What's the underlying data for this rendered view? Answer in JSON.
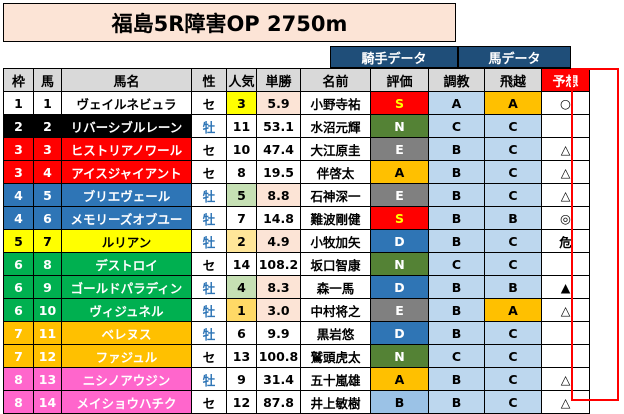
{
  "title": "福島5R障害OP 2750m",
  "groups": {
    "jockey": "騎手データ",
    "horse": "馬データ"
  },
  "headers": {
    "waku": "枠",
    "uma": "馬",
    "name": "馬名",
    "sex": "性",
    "pop": "人気",
    "odds": "単勝",
    "jockey": "名前",
    "rating": "評価",
    "chokyo": "調教",
    "hiyaku": "飛越",
    "pred": "予想"
  },
  "colors": {
    "waku1": "#ffffff",
    "waku2": "#000000",
    "waku3": "#ff0000",
    "waku4": "#2e75b6",
    "waku5": "#ffff00",
    "waku6": "#00b050",
    "waku7": "#ffc000",
    "waku8": "#ff66cc"
  },
  "rows": [
    {
      "waku": "1",
      "uma": "1",
      "name": "ヴェイルネビュラ",
      "sex": "セ",
      "pop": "3",
      "odds": "5.9",
      "jockey": "小野寺祐",
      "rating": "S",
      "chokyo": "A",
      "hiyaku": "A",
      "pred": "○"
    },
    {
      "waku": "2",
      "uma": "2",
      "name": "リバーシブルレーン",
      "sex": "牡",
      "pop": "11",
      "odds": "53.1",
      "jockey": "水沼元輝",
      "rating": "N",
      "chokyo": "C",
      "hiyaku": "C",
      "pred": ""
    },
    {
      "waku": "3",
      "uma": "3",
      "name": "ヒストリアノワール",
      "sex": "セ",
      "pop": "10",
      "odds": "47.4",
      "jockey": "大江原圭",
      "rating": "E",
      "chokyo": "B",
      "hiyaku": "C",
      "pred": "△"
    },
    {
      "waku": "3",
      "uma": "4",
      "name": "アイスジャイアント",
      "sex": "セ",
      "pop": "8",
      "odds": "19.5",
      "jockey": "伴啓太",
      "rating": "A",
      "chokyo": "B",
      "hiyaku": "C",
      "pred": "△"
    },
    {
      "waku": "4",
      "uma": "5",
      "name": "ブリエヴェール",
      "sex": "牡",
      "pop": "5",
      "odds": "8.8",
      "jockey": "石神深一",
      "rating": "E",
      "chokyo": "B",
      "hiyaku": "C",
      "pred": "△"
    },
    {
      "waku": "4",
      "uma": "6",
      "name": "メモリーズオブユー",
      "sex": "牡",
      "pop": "7",
      "odds": "14.8",
      "jockey": "難波剛健",
      "rating": "S",
      "chokyo": "B",
      "hiyaku": "B",
      "pred": "◎"
    },
    {
      "waku": "5",
      "uma": "7",
      "name": "ルリアン",
      "sex": "牡",
      "pop": "2",
      "odds": "4.9",
      "jockey": "小牧加矢",
      "rating": "D",
      "chokyo": "B",
      "hiyaku": "C",
      "pred": "危"
    },
    {
      "waku": "6",
      "uma": "8",
      "name": "デストロイ",
      "sex": "セ",
      "pop": "14",
      "odds": "108.2",
      "jockey": "坂口智康",
      "rating": "N",
      "chokyo": "C",
      "hiyaku": "C",
      "pred": ""
    },
    {
      "waku": "6",
      "uma": "9",
      "name": "ゴールドパラディン",
      "sex": "牡",
      "pop": "4",
      "odds": "8.3",
      "jockey": "森一馬",
      "rating": "D",
      "chokyo": "B",
      "hiyaku": "B",
      "pred": "▲"
    },
    {
      "waku": "6",
      "uma": "10",
      "name": "ヴィジュネル",
      "sex": "牡",
      "pop": "1",
      "odds": "3.0",
      "jockey": "中村将之",
      "rating": "E",
      "chokyo": "B",
      "hiyaku": "A",
      "pred": "△"
    },
    {
      "waku": "7",
      "uma": "11",
      "name": "ベレヌス",
      "sex": "牡",
      "pop": "6",
      "odds": "9.9",
      "jockey": "黒岩悠",
      "rating": "D",
      "chokyo": "B",
      "hiyaku": "C",
      "pred": ""
    },
    {
      "waku": "7",
      "uma": "12",
      "name": "ファジュル",
      "sex": "セ",
      "pop": "13",
      "odds": "100.8",
      "jockey": "鷲頭虎太",
      "rating": "N",
      "chokyo": "C",
      "hiyaku": "C",
      "pred": ""
    },
    {
      "waku": "8",
      "uma": "13",
      "name": "ニシノアウジン",
      "sex": "牡",
      "pop": "9",
      "odds": "31.4",
      "jockey": "五十嵐雄",
      "rating": "A",
      "chokyo": "B",
      "hiyaku": "C",
      "pred": "△"
    },
    {
      "waku": "8",
      "uma": "14",
      "name": "メイショウハチク",
      "sex": "セ",
      "pop": "12",
      "odds": "87.8",
      "jockey": "井上敏樹",
      "rating": "B",
      "chokyo": "B",
      "hiyaku": "C",
      "pred": "△"
    }
  ]
}
